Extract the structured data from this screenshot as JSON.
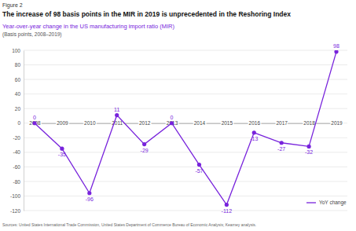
{
  "chart_data": {
    "type": "line",
    "label": "Figure 2",
    "title": "The increase of 98 basis points in the MIR in 2019 is unprecedented in the Reshoring Index",
    "subtitle": "Year-over-year change in the US manufacturing import ratio (MIR)",
    "y_axis_label": "(Basis points, 2008–2019)",
    "source": "Sources: United States International Trade Commission, United States Department of Commerce Bureau of Economic Analysis; Kearney analysis.",
    "categories": [
      "2008",
      "2009",
      "2010",
      "2011",
      "2012",
      "2013",
      "2014",
      "2015",
      "2016",
      "2017",
      "2018",
      "2019"
    ],
    "series": [
      {
        "name": "YoY change",
        "color": "#7823dc",
        "marker": "circle",
        "values": [
          0,
          -35,
          -96,
          11,
          -29,
          0,
          -57,
          -112,
          -13,
          -27,
          -32,
          98
        ]
      }
    ],
    "ylim": [
      -120,
      100
    ],
    "yticks": [
      -120,
      -100,
      -80,
      -60,
      -40,
      -20,
      0,
      20,
      40,
      60,
      80,
      100
    ],
    "grid": true,
    "data_labels": true,
    "legend": "lower right"
  }
}
